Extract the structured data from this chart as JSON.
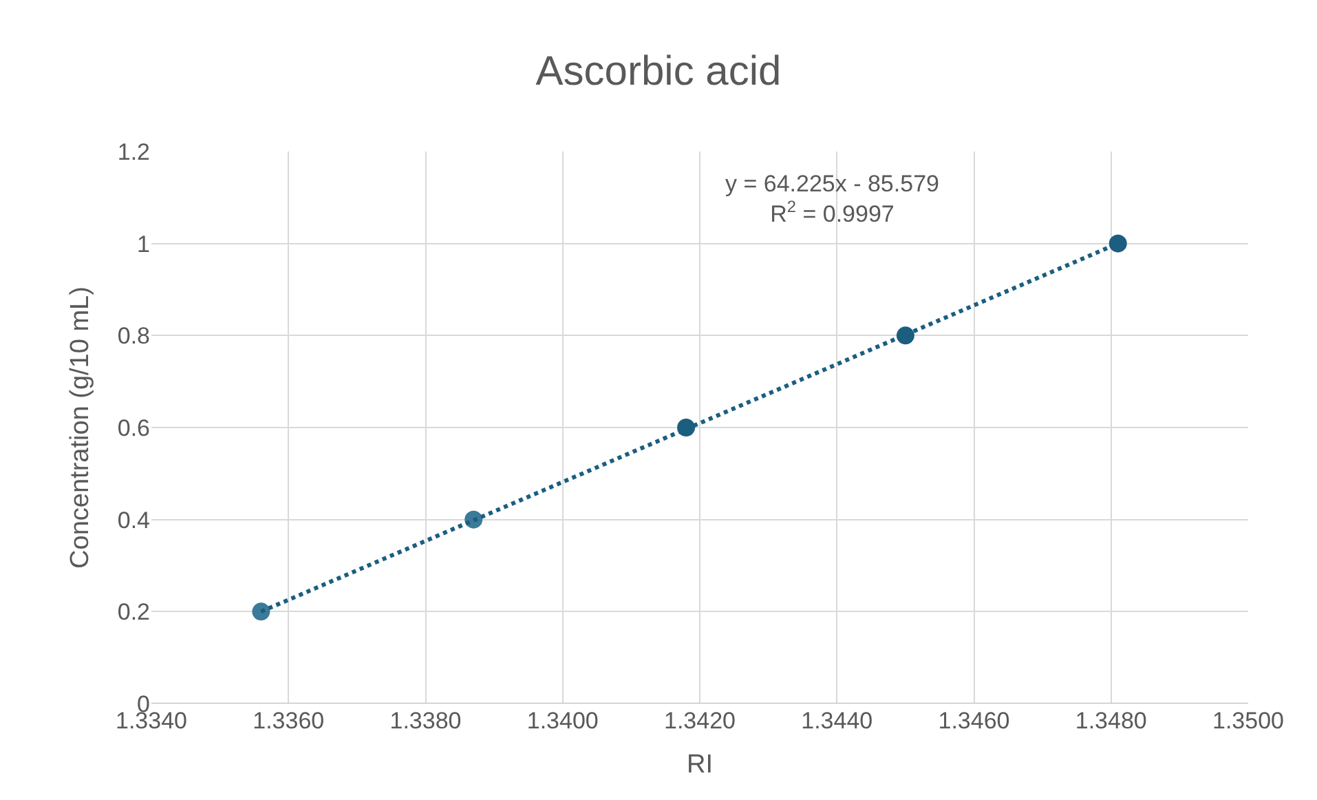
{
  "chart_data": {
    "type": "scatter",
    "title": "Ascorbic acid",
    "xlabel": "RI",
    "ylabel": "Concentration (g/10 mL)",
    "series": [
      {
        "marker": "circle",
        "colors": [
          "#3b7a99",
          "#3b7a99",
          "#1b5e80",
          "#1b5e80",
          "#1b5e80"
        ],
        "x": [
          1.3356,
          1.3387,
          1.3418,
          1.345,
          1.3481
        ],
        "values": [
          0.2,
          0.4,
          0.6,
          0.8,
          1.0
        ]
      },
      {
        "type": "line",
        "color": "#1b5e80",
        "line_style": "dotted",
        "marker": "none",
        "x": [
          1.3356,
          1.3481
        ],
        "values": [
          0.2,
          1.0
        ]
      }
    ],
    "annotations": [
      "y = 64.225x - 85.579\nR$^{2}$ = 0.9997"
    ],
    "xlim": [
      1.334,
      1.35
    ],
    "xticks": [
      {
        "value": 1.334,
        "label": "1.3340"
      },
      {
        "value": 1.336,
        "label": "1.3360"
      },
      {
        "value": 1.338,
        "label": "1.3380"
      },
      {
        "value": 1.34,
        "label": "1.3400"
      },
      {
        "value": 1.342,
        "label": "1.3420"
      },
      {
        "value": 1.344,
        "label": "1.3440"
      },
      {
        "value": 1.346,
        "label": "1.3460"
      },
      {
        "value": 1.348,
        "label": "1.3480"
      },
      {
        "value": 1.35,
        "label": "1.3500"
      }
    ],
    "ylim": [
      0,
      1.2
    ],
    "yticks": [
      0,
      0.2,
      0.4,
      0.6,
      0.8,
      1,
      1.2
    ],
    "grid": true,
    "legend": false
  }
}
